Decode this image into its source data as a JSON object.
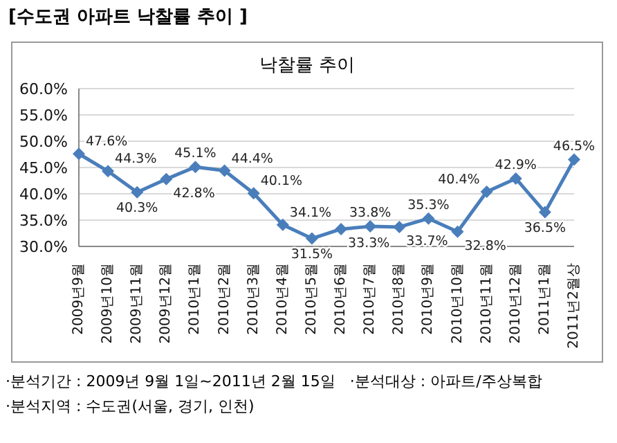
{
  "chart_data": {
    "type": "line",
    "title": "[수도권 아파트 낙찰률 추이 ]",
    "subtitle": "낙찰률 추이",
    "categories": [
      "2009년9월",
      "2009년10월",
      "2009년11월",
      "2009년12월",
      "2010년1월",
      "2010년2월",
      "2010년3월",
      "2010년4월",
      "2010년5월",
      "2010년6월",
      "2010년7월",
      "2010년8월",
      "2010년9월",
      "2010년10월",
      "2010년11월",
      "2010년12월",
      "2011년1월",
      "2011년2월상"
    ],
    "series": [
      {
        "color": "#4a7ebb",
        "values": [
          47.6,
          44.3,
          40.3,
          42.8,
          45.1,
          44.4,
          40.1,
          34.1,
          31.5,
          33.3,
          33.8,
          33.7,
          35.3,
          32.8,
          40.4,
          42.9,
          36.5,
          46.5
        ],
        "value_labels": [
          "47.6%",
          "44.3%",
          "40.3%",
          "42.8%",
          "45.1%",
          "44.4%",
          "40.1%",
          "34.1%",
          "31.5%",
          "33.3%",
          "33.8%",
          "33.7%",
          "35.3%",
          "32.8%",
          "40.4%",
          "42.9%",
          "36.5%",
          "46.5%"
        ]
      }
    ],
    "ylim": [
      30,
      60
    ],
    "yticks": [
      {
        "value": 30,
        "label": "30.0%"
      },
      {
        "value": 35,
        "label": "35.0%"
      },
      {
        "value": 40,
        "label": "40.0%"
      },
      {
        "value": 45,
        "label": "45.0%"
      },
      {
        "value": 50,
        "label": "50.0%"
      },
      {
        "value": 55,
        "label": "55.0%"
      },
      {
        "value": 60,
        "label": "60.0%"
      }
    ],
    "grid": "y",
    "marker": "diamond",
    "line_style": "solid",
    "annotations": [
      "·분석기간 : 2009년 9월 1일~2011년 2월 15일   ·분석대상 : 아파트/주상복합",
      "·분석지역 : 수도권(서울, 경기, 인천)"
    ]
  }
}
